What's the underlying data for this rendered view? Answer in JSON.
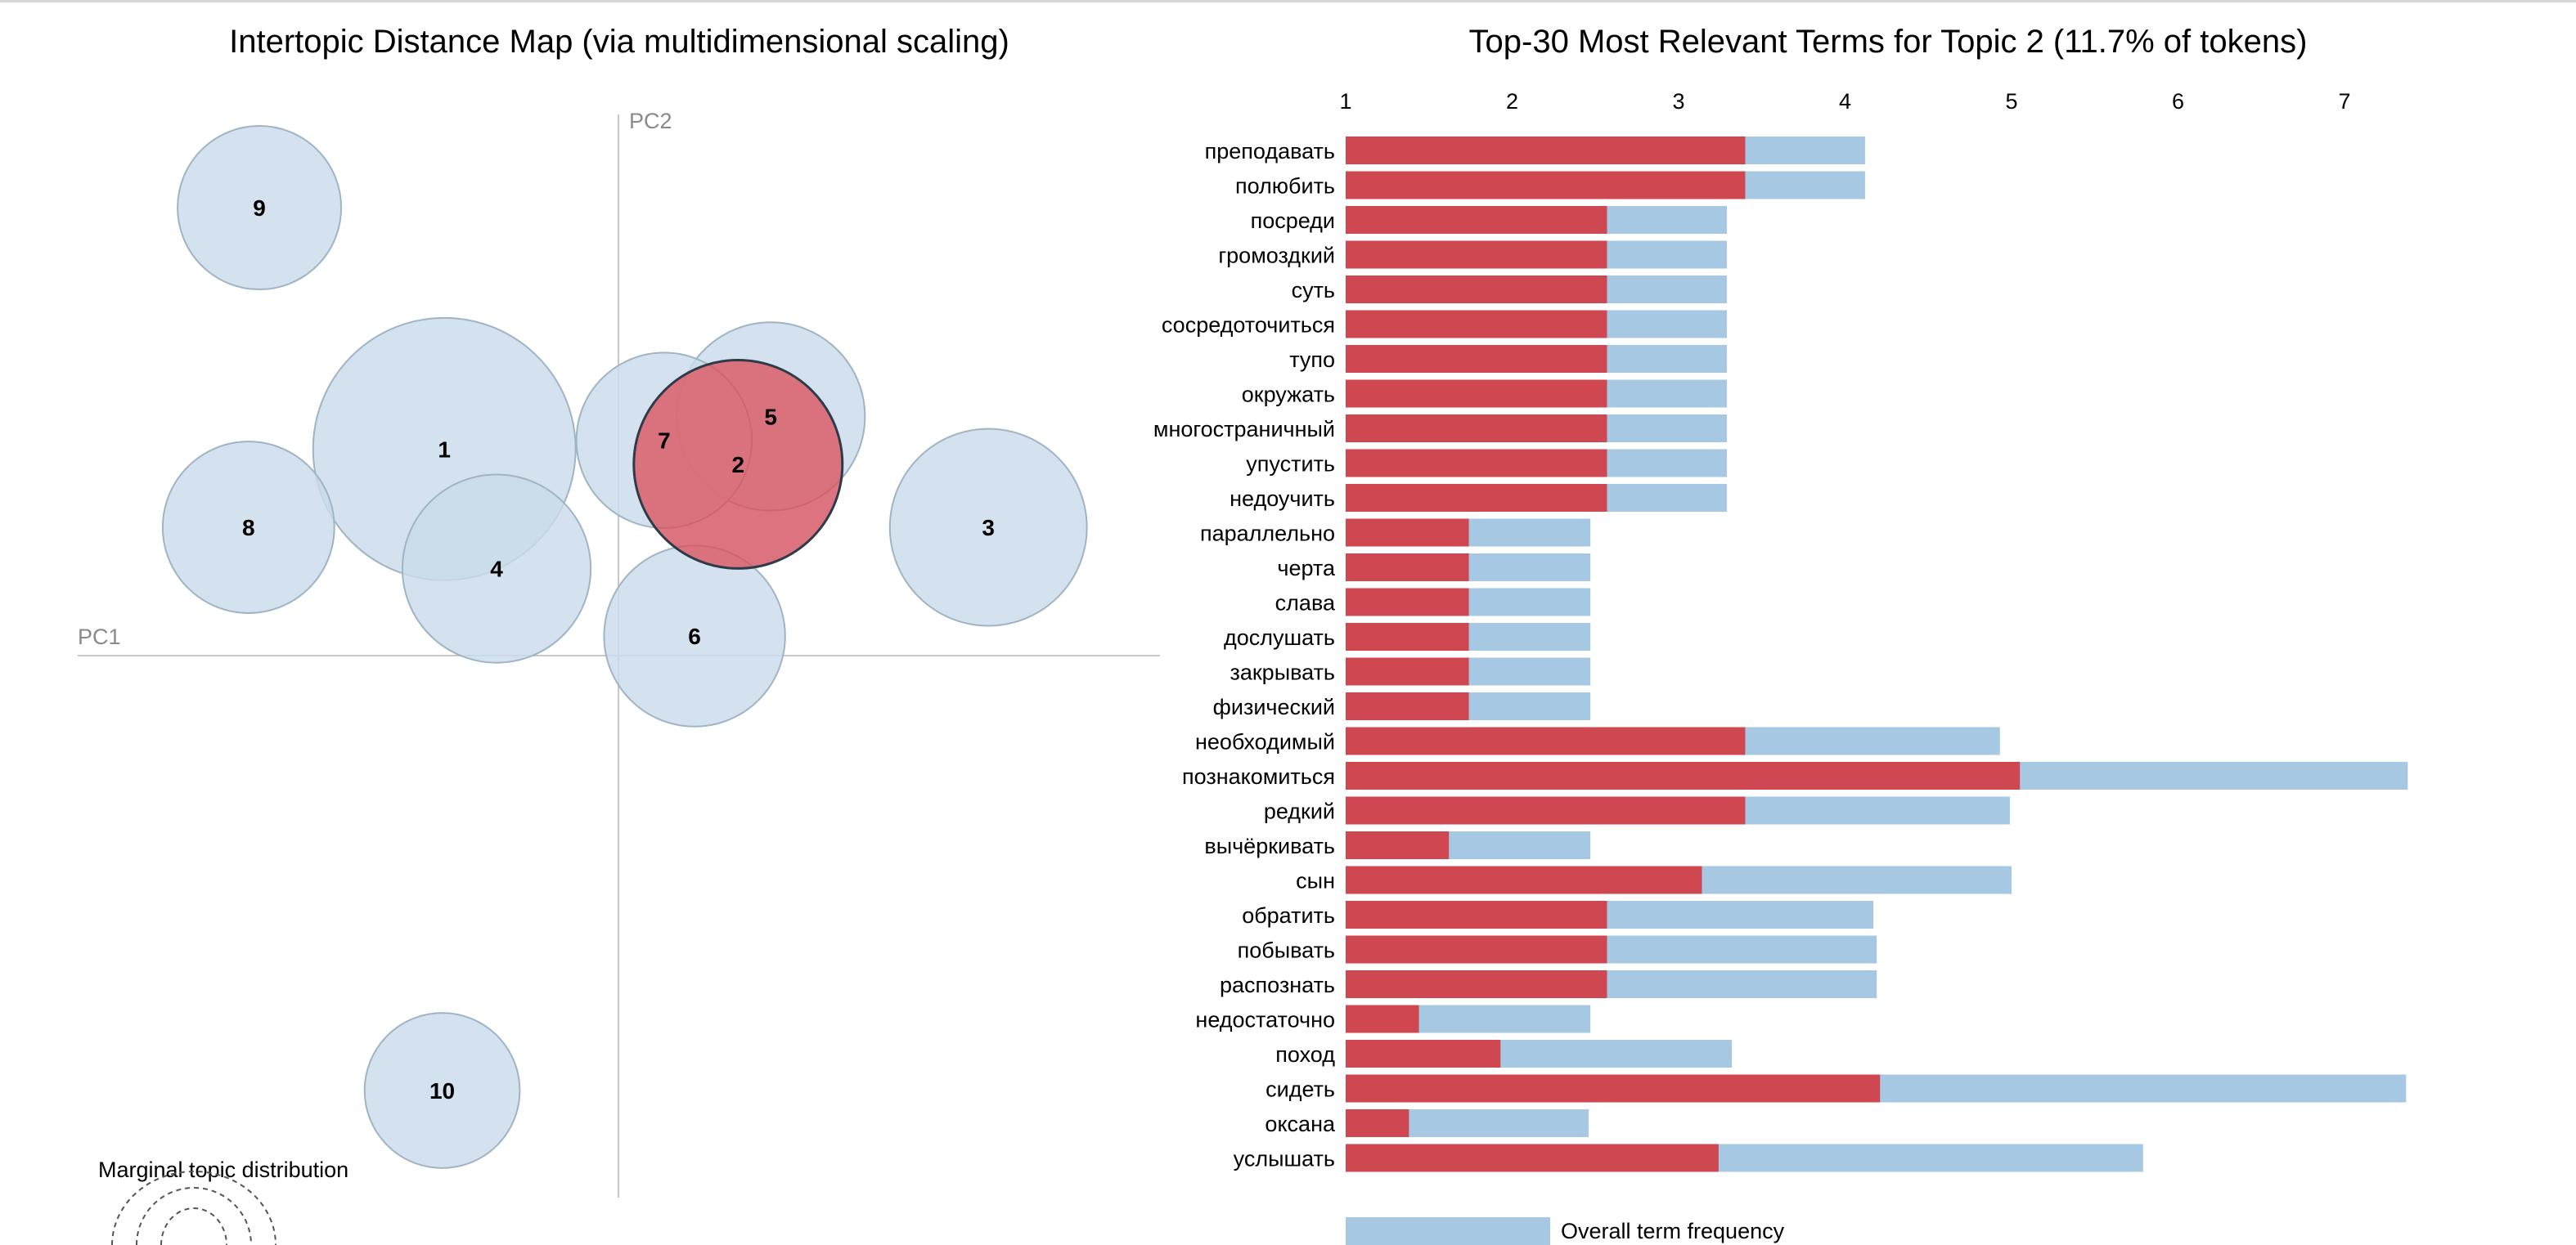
{
  "colors": {
    "topic_fill": "#c9dcea",
    "topic_stroke": "#9fb4c4",
    "selected_fill": "#e0454e",
    "relevance_bar": "#cf4750",
    "overall_bar": "#a6c8e2",
    "axis_line": "#c8c8c8"
  },
  "left_panel": {
    "title": "Intertopic Distance Map (via multidimensional scaling)",
    "pc1_label": "PC1",
    "pc2_label": "PC2",
    "marginal_label": "Marginal topic distribution"
  },
  "right_panel": {
    "title": "Top-30 Most Relevant Terms for Topic 2 (11.7% of tokens)",
    "legend_overall": "Overall term frequency"
  },
  "chart_data": [
    {
      "type": "scatter",
      "title": "Intertopic Distance Map (via multidimensional scaling)",
      "xlabel": "PC1",
      "ylabel": "PC2",
      "selected_topic": "2",
      "topics": [
        {
          "id": "1",
          "pc1": -0.08,
          "pc2": 0.095,
          "size": 10.3
        },
        {
          "id": "2",
          "pc1": 0.055,
          "pc2": 0.088,
          "size": 6.5
        },
        {
          "id": "3",
          "pc1": 0.17,
          "pc2": 0.059,
          "size": 5.8
        },
        {
          "id": "4",
          "pc1": -0.056,
          "pc2": 0.04,
          "size": 5.3
        },
        {
          "id": "5",
          "pc1": 0.07,
          "pc2": 0.11,
          "size": 5.3
        },
        {
          "id": "6",
          "pc1": 0.035,
          "pc2": 0.009,
          "size": 4.9
        },
        {
          "id": "7",
          "pc1": 0.021,
          "pc2": 0.099,
          "size": 4.6
        },
        {
          "id": "8",
          "pc1": -0.17,
          "pc2": 0.059,
          "size": 4.4
        },
        {
          "id": "9",
          "pc1": -0.165,
          "pc2": 0.206,
          "size": 4.0
        },
        {
          "id": "10",
          "pc1": -0.081,
          "pc2": -0.2,
          "size": 3.6
        }
      ]
    },
    {
      "type": "bar",
      "orientation": "horizontal",
      "title": "Top-30 Most Relevant Terms for Topic 2 (11.7% of tokens)",
      "xticks": [
        1,
        2,
        3,
        4,
        5,
        6,
        7
      ],
      "xlim": [
        1,
        7.4
      ],
      "legend": [
        "Overall term frequency"
      ],
      "categories": [
        "преподавать",
        "полюбить",
        "посреди",
        "громоздкий",
        "суть",
        "сосредоточиться",
        "тупо",
        "окружать",
        "многостраничный",
        "упустить",
        "недоучить",
        "параллельно",
        "черта",
        "слава",
        "дослушать",
        "закрывать",
        "физический",
        "необходимый",
        "познакомиться",
        "редкий",
        "вычёркивать",
        "сын",
        "обратить",
        "побывать",
        "распознать",
        "недостаточно",
        "поход",
        "сидеть",
        "оксана",
        "услышать"
      ],
      "series": [
        {
          "name": "Overall term frequency",
          "values": [
            4.12,
            4.12,
            3.29,
            3.29,
            3.29,
            3.29,
            3.29,
            3.29,
            3.29,
            3.29,
            3.29,
            2.47,
            2.47,
            2.47,
            2.47,
            2.47,
            2.47,
            4.93,
            7.38,
            4.99,
            2.47,
            5.0,
            4.17,
            4.19,
            4.19,
            2.47,
            3.32,
            7.37,
            2.46,
            5.79
          ]
        },
        {
          "values": [
            3.4,
            3.4,
            2.57,
            2.57,
            2.57,
            2.57,
            2.57,
            2.57,
            2.57,
            2.57,
            2.57,
            1.74,
            1.74,
            1.74,
            1.74,
            1.74,
            1.74,
            3.4,
            5.05,
            3.4,
            1.62,
            3.14,
            2.57,
            2.57,
            2.57,
            1.44,
            1.93,
            4.21,
            1.38,
            3.24
          ]
        }
      ]
    }
  ]
}
